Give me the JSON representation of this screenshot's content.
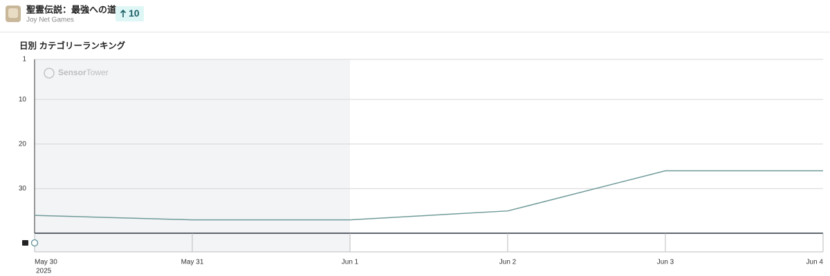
{
  "header": {
    "app_name": "聖霊伝説：最強への道",
    "publisher": "Joy Net Games",
    "rank_change": "10"
  },
  "chart_data": {
    "type": "line",
    "title": "日別 カテゴリーランキング",
    "watermark": [
      "Sensor",
      "Tower"
    ],
    "categories": [
      "May 30",
      "May 31",
      "Jun 1",
      "Jun 2",
      "Jun 3",
      "Jun 4"
    ],
    "year_label": "2025",
    "values": [
      36,
      37,
      37,
      35,
      26,
      26
    ],
    "color": "#6e9a98",
    "ylim": [
      1,
      40
    ],
    "y_inverted": true,
    "yticks": [
      1,
      10,
      20,
      30
    ],
    "grid": true
  }
}
